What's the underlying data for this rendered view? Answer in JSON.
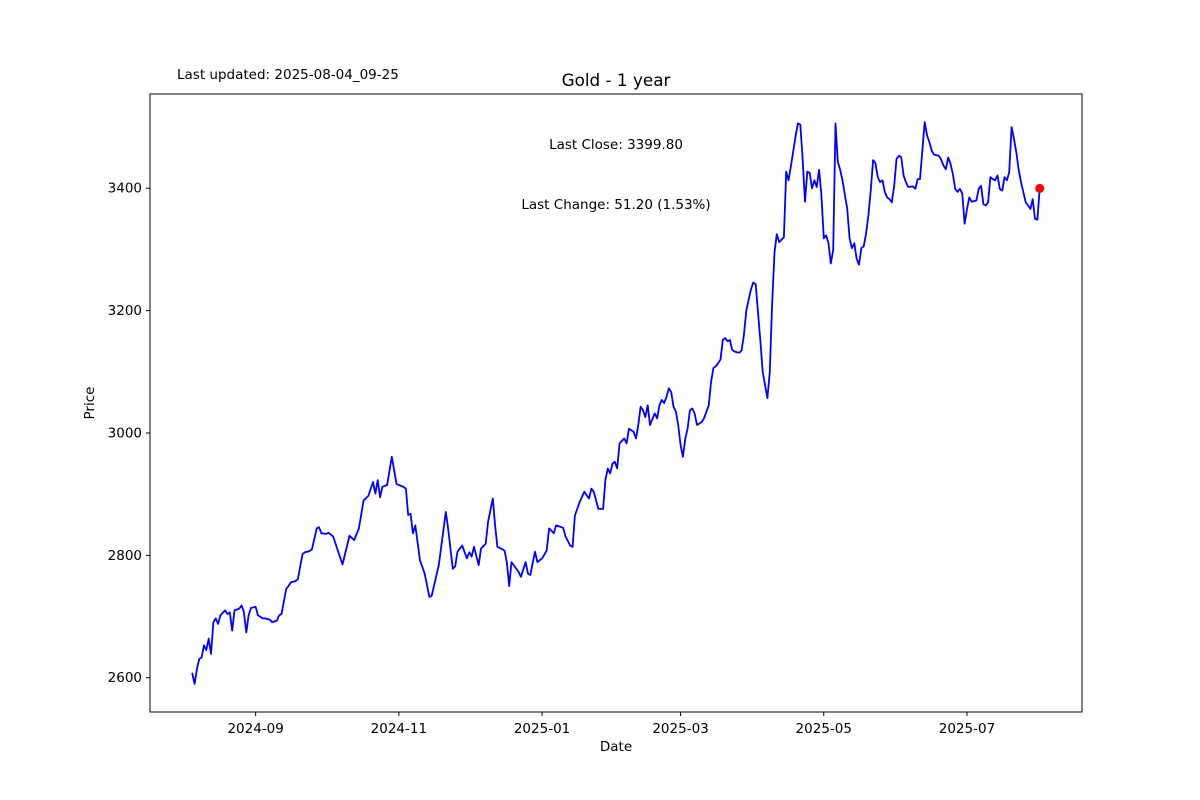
{
  "header": {
    "last_updated": "Last updated: 2025-08-04_09-25",
    "title": "Gold - 1 year",
    "annotation": [
      "Last Close: 3399.80",
      "Last Change: 51.20 (1.53%)"
    ]
  },
  "axes": {
    "xlabel": "Date",
    "ylabel": "Price"
  },
  "chart_data": {
    "type": "line",
    "title": "Gold - 1 year",
    "xlabel": "Date",
    "ylabel": "Price",
    "grid": false,
    "legend_position": "none",
    "line_color": "#0000ff",
    "last_point_marker_color": "#ff0000",
    "axis_color": "#000000",
    "background_color": "#ffffff",
    "last_close": 3399.8,
    "last_change": "51.20 (1.53%)",
    "xlim": [
      "2024-07-18",
      "2025-08-19"
    ],
    "ylim": [
      2544,
      3554
    ],
    "x_ticks": [
      {
        "date": "2024-09-01",
        "label": "2024-09"
      },
      {
        "date": "2024-11-01",
        "label": "2024-11"
      },
      {
        "date": "2025-01-01",
        "label": "2025-01"
      },
      {
        "date": "2025-03-01",
        "label": "2025-03"
      },
      {
        "date": "2025-05-01",
        "label": "2025-05"
      },
      {
        "date": "2025-07-01",
        "label": "2025-07"
      }
    ],
    "y_ticks": [
      {
        "value": 2600,
        "label": "2600"
      },
      {
        "value": 2800,
        "label": "2800"
      },
      {
        "value": 3000,
        "label": "3000"
      },
      {
        "value": 3200,
        "label": "3200"
      },
      {
        "value": 3400,
        "label": "3400"
      }
    ],
    "points": [
      [
        "2024-08-05",
        2607
      ],
      [
        "2024-08-06",
        2590
      ],
      [
        "2024-08-07",
        2615
      ],
      [
        "2024-08-08",
        2631
      ],
      [
        "2024-08-09",
        2633
      ],
      [
        "2024-08-10",
        2653
      ],
      [
        "2024-08-11",
        2645
      ],
      [
        "2024-08-12",
        2664
      ],
      [
        "2024-08-13",
        2639
      ],
      [
        "2024-08-14",
        2691
      ],
      [
        "2024-08-15",
        2697
      ],
      [
        "2024-08-16",
        2688
      ],
      [
        "2024-08-17",
        2702
      ],
      [
        "2024-08-19",
        2710
      ],
      [
        "2024-08-20",
        2704
      ],
      [
        "2024-08-21",
        2707
      ],
      [
        "2024-08-22",
        2677
      ],
      [
        "2024-08-23",
        2710
      ],
      [
        "2024-08-25",
        2713
      ],
      [
        "2024-08-26",
        2718
      ],
      [
        "2024-08-27",
        2707
      ],
      [
        "2024-08-28",
        2674
      ],
      [
        "2024-08-29",
        2702
      ],
      [
        "2024-08-30",
        2714
      ],
      [
        "2024-09-01",
        2716
      ],
      [
        "2024-09-02",
        2702
      ],
      [
        "2024-09-04",
        2697
      ],
      [
        "2024-09-05",
        2697
      ],
      [
        "2024-09-07",
        2695
      ],
      [
        "2024-09-08",
        2691
      ],
      [
        "2024-09-10",
        2693
      ],
      [
        "2024-09-11",
        2702
      ],
      [
        "2024-09-12",
        2704
      ],
      [
        "2024-09-14",
        2745
      ],
      [
        "2024-09-15",
        2750
      ],
      [
        "2024-09-16",
        2756
      ],
      [
        "2024-09-18",
        2758
      ],
      [
        "2024-09-19",
        2761
      ],
      [
        "2024-09-20",
        2782
      ],
      [
        "2024-09-21",
        2802
      ],
      [
        "2024-09-22",
        2805
      ],
      [
        "2024-09-24",
        2807
      ],
      [
        "2024-09-25",
        2810
      ],
      [
        "2024-09-27",
        2844
      ],
      [
        "2024-09-28",
        2846
      ],
      [
        "2024-09-29",
        2836
      ],
      [
        "2024-10-01",
        2835
      ],
      [
        "2024-10-02",
        2837
      ],
      [
        "2024-10-04",
        2831
      ],
      [
        "2024-10-08",
        2785
      ],
      [
        "2024-10-11",
        2832
      ],
      [
        "2024-10-13",
        2825
      ],
      [
        "2024-10-15",
        2844
      ],
      [
        "2024-10-17",
        2890
      ],
      [
        "2024-10-19",
        2897
      ],
      [
        "2024-10-21",
        2920
      ],
      [
        "2024-10-22",
        2901
      ],
      [
        "2024-10-23",
        2923
      ],
      [
        "2024-10-24",
        2895
      ],
      [
        "2024-10-25",
        2912
      ],
      [
        "2024-10-27",
        2915
      ],
      [
        "2024-10-29",
        2961
      ],
      [
        "2024-10-31",
        2917
      ],
      [
        "2024-11-01",
        2915
      ],
      [
        "2024-11-03",
        2912
      ],
      [
        "2024-11-04",
        2909
      ],
      [
        "2024-11-05",
        2866
      ],
      [
        "2024-11-06",
        2868
      ],
      [
        "2024-11-07",
        2836
      ],
      [
        "2024-11-08",
        2849
      ],
      [
        "2024-11-10",
        2792
      ],
      [
        "2024-11-12",
        2770
      ],
      [
        "2024-11-14",
        2732
      ],
      [
        "2024-11-15",
        2734
      ],
      [
        "2024-11-18",
        2784
      ],
      [
        "2024-11-21",
        2871
      ],
      [
        "2024-11-22",
        2844
      ],
      [
        "2024-11-24",
        2778
      ],
      [
        "2024-11-25",
        2782
      ],
      [
        "2024-11-26",
        2806
      ],
      [
        "2024-11-28",
        2816
      ],
      [
        "2024-11-30",
        2795
      ],
      [
        "2024-12-01",
        2805
      ],
      [
        "2024-12-02",
        2798
      ],
      [
        "2024-12-03",
        2814
      ],
      [
        "2024-12-05",
        2784
      ],
      [
        "2024-12-06",
        2811
      ],
      [
        "2024-12-08",
        2819
      ],
      [
        "2024-12-09",
        2855
      ],
      [
        "2024-12-11",
        2893
      ],
      [
        "2024-12-12",
        2849
      ],
      [
        "2024-12-13",
        2814
      ],
      [
        "2024-12-14",
        2812
      ],
      [
        "2024-12-15",
        2810
      ],
      [
        "2024-12-16",
        2808
      ],
      [
        "2024-12-17",
        2789
      ],
      [
        "2024-12-18",
        2750
      ],
      [
        "2024-12-19",
        2789
      ],
      [
        "2024-12-22",
        2773
      ],
      [
        "2024-12-23",
        2765
      ],
      [
        "2024-12-25",
        2789
      ],
      [
        "2024-12-26",
        2770
      ],
      [
        "2024-12-27",
        2768
      ],
      [
        "2024-12-29",
        2806
      ],
      [
        "2024-12-30",
        2789
      ],
      [
        "2025-01-01",
        2795
      ],
      [
        "2025-01-03",
        2808
      ],
      [
        "2025-01-04",
        2844
      ],
      [
        "2025-01-06",
        2836
      ],
      [
        "2025-01-07",
        2849
      ],
      [
        "2025-01-10",
        2845
      ],
      [
        "2025-01-11",
        2831
      ],
      [
        "2025-01-13",
        2816
      ],
      [
        "2025-01-14",
        2814
      ],
      [
        "2025-01-15",
        2865
      ],
      [
        "2025-01-17",
        2887
      ],
      [
        "2025-01-19",
        2904
      ],
      [
        "2025-01-20",
        2898
      ],
      [
        "2025-01-21",
        2893
      ],
      [
        "2025-01-22",
        2909
      ],
      [
        "2025-01-23",
        2904
      ],
      [
        "2025-01-25",
        2876
      ],
      [
        "2025-01-27",
        2876
      ],
      [
        "2025-01-28",
        2923
      ],
      [
        "2025-01-29",
        2942
      ],
      [
        "2025-01-30",
        2934
      ],
      [
        "2025-01-31",
        2950
      ],
      [
        "2025-02-01",
        2953
      ],
      [
        "2025-02-02",
        2942
      ],
      [
        "2025-02-03",
        2983
      ],
      [
        "2025-02-05",
        2991
      ],
      [
        "2025-02-06",
        2983
      ],
      [
        "2025-02-07",
        3007
      ],
      [
        "2025-02-09",
        3002
      ],
      [
        "2025-02-10",
        2991
      ],
      [
        "2025-02-11",
        3013
      ],
      [
        "2025-02-12",
        3043
      ],
      [
        "2025-02-13",
        3037
      ],
      [
        "2025-02-14",
        3026
      ],
      [
        "2025-02-15",
        3045
      ],
      [
        "2025-02-16",
        3013
      ],
      [
        "2025-02-18",
        3032
      ],
      [
        "2025-02-19",
        3024
      ],
      [
        "2025-02-20",
        3045
      ],
      [
        "2025-02-21",
        3054
      ],
      [
        "2025-02-22",
        3049
      ],
      [
        "2025-02-23",
        3059
      ],
      [
        "2025-02-24",
        3073
      ],
      [
        "2025-02-25",
        3067
      ],
      [
        "2025-02-26",
        3043
      ],
      [
        "2025-02-27",
        3035
      ],
      [
        "2025-02-28",
        3013
      ],
      [
        "2025-03-01",
        2980
      ],
      [
        "2025-03-02",
        2961
      ],
      [
        "2025-03-03",
        2991
      ],
      [
        "2025-03-04",
        3007
      ],
      [
        "2025-03-05",
        3037
      ],
      [
        "2025-03-06",
        3040
      ],
      [
        "2025-03-07",
        3032
      ],
      [
        "2025-03-08",
        3013
      ],
      [
        "2025-03-10",
        3018
      ],
      [
        "2025-03-11",
        3024
      ],
      [
        "2025-03-13",
        3045
      ],
      [
        "2025-03-14",
        3084
      ],
      [
        "2025-03-15",
        3106
      ],
      [
        "2025-03-16",
        3109
      ],
      [
        "2025-03-17",
        3114
      ],
      [
        "2025-03-18",
        3120
      ],
      [
        "2025-03-19",
        3152
      ],
      [
        "2025-03-20",
        3155
      ],
      [
        "2025-03-21",
        3150
      ],
      [
        "2025-03-22",
        3152
      ],
      [
        "2025-03-23",
        3136
      ],
      [
        "2025-03-24",
        3133
      ],
      [
        "2025-03-26",
        3131
      ],
      [
        "2025-03-27",
        3135
      ],
      [
        "2025-03-28",
        3160
      ],
      [
        "2025-03-29",
        3200
      ],
      [
        "2025-03-31",
        3235
      ],
      [
        "2025-04-01",
        3246
      ],
      [
        "2025-04-02",
        3243
      ],
      [
        "2025-04-04",
        3150
      ],
      [
        "2025-04-05",
        3100
      ],
      [
        "2025-04-07",
        3057
      ],
      [
        "2025-04-08",
        3100
      ],
      [
        "2025-04-09",
        3210
      ],
      [
        "2025-04-10",
        3295
      ],
      [
        "2025-04-11",
        3325
      ],
      [
        "2025-04-12",
        3312
      ],
      [
        "2025-04-14",
        3320
      ],
      [
        "2025-04-15",
        3427
      ],
      [
        "2025-04-16",
        3413
      ],
      [
        "2025-04-17",
        3436
      ],
      [
        "2025-04-18",
        3460
      ],
      [
        "2025-04-19",
        3485
      ],
      [
        "2025-04-20",
        3506
      ],
      [
        "2025-04-21",
        3504
      ],
      [
        "2025-04-22",
        3449
      ],
      [
        "2025-04-23",
        3378
      ],
      [
        "2025-04-24",
        3427
      ],
      [
        "2025-04-25",
        3425
      ],
      [
        "2025-04-26",
        3400
      ],
      [
        "2025-04-27",
        3413
      ],
      [
        "2025-04-28",
        3402
      ],
      [
        "2025-04-29",
        3430
      ],
      [
        "2025-04-30",
        3389
      ],
      [
        "2025-05-01",
        3318
      ],
      [
        "2025-05-02",
        3323
      ],
      [
        "2025-05-03",
        3310
      ],
      [
        "2025-05-04",
        3277
      ],
      [
        "2025-05-05",
        3299
      ],
      [
        "2025-05-06",
        3506
      ],
      [
        "2025-05-07",
        3443
      ],
      [
        "2025-05-08",
        3430
      ],
      [
        "2025-05-09",
        3413
      ],
      [
        "2025-05-10",
        3389
      ],
      [
        "2025-05-11",
        3367
      ],
      [
        "2025-05-12",
        3318
      ],
      [
        "2025-05-13",
        3302
      ],
      [
        "2025-05-14",
        3310
      ],
      [
        "2025-05-15",
        3285
      ],
      [
        "2025-05-16",
        3275
      ],
      [
        "2025-05-17",
        3302
      ],
      [
        "2025-05-18",
        3305
      ],
      [
        "2025-05-19",
        3325
      ],
      [
        "2025-05-20",
        3356
      ],
      [
        "2025-05-21",
        3395
      ],
      [
        "2025-05-22",
        3446
      ],
      [
        "2025-05-23",
        3441
      ],
      [
        "2025-05-24",
        3418
      ],
      [
        "2025-05-25",
        3410
      ],
      [
        "2025-05-26",
        3413
      ],
      [
        "2025-05-27",
        3394
      ],
      [
        "2025-05-28",
        3385
      ],
      [
        "2025-05-29",
        3382
      ],
      [
        "2025-05-30",
        3377
      ],
      [
        "2025-05-31",
        3404
      ],
      [
        "2025-06-01",
        3448
      ],
      [
        "2025-06-02",
        3453
      ],
      [
        "2025-06-03",
        3451
      ],
      [
        "2025-06-04",
        3421
      ],
      [
        "2025-06-05",
        3410
      ],
      [
        "2025-06-06",
        3402
      ],
      [
        "2025-06-08",
        3403
      ],
      [
        "2025-06-09",
        3399
      ],
      [
        "2025-06-10",
        3415
      ],
      [
        "2025-06-11",
        3415
      ],
      [
        "2025-06-13",
        3508
      ],
      [
        "2025-06-14",
        3486
      ],
      [
        "2025-06-15",
        3475
      ],
      [
        "2025-06-16",
        3461
      ],
      [
        "2025-06-17",
        3455
      ],
      [
        "2025-06-19",
        3453
      ],
      [
        "2025-06-20",
        3447
      ],
      [
        "2025-06-21",
        3437
      ],
      [
        "2025-06-22",
        3431
      ],
      [
        "2025-06-23",
        3450
      ],
      [
        "2025-06-24",
        3440
      ],
      [
        "2025-06-25",
        3423
      ],
      [
        "2025-06-26",
        3399
      ],
      [
        "2025-06-27",
        3394
      ],
      [
        "2025-06-28",
        3399
      ],
      [
        "2025-06-29",
        3391
      ],
      [
        "2025-06-30",
        3342
      ],
      [
        "2025-07-01",
        3366
      ],
      [
        "2025-07-02",
        3385
      ],
      [
        "2025-07-03",
        3378
      ],
      [
        "2025-07-05",
        3380
      ],
      [
        "2025-07-06",
        3399
      ],
      [
        "2025-07-07",
        3404
      ],
      [
        "2025-07-08",
        3374
      ],
      [
        "2025-07-09",
        3372
      ],
      [
        "2025-07-10",
        3377
      ],
      [
        "2025-07-11",
        3418
      ],
      [
        "2025-07-12",
        3415
      ],
      [
        "2025-07-13",
        3413
      ],
      [
        "2025-07-14",
        3421
      ],
      [
        "2025-07-15",
        3399
      ],
      [
        "2025-07-16",
        3396
      ],
      [
        "2025-07-17",
        3418
      ],
      [
        "2025-07-18",
        3413
      ],
      [
        "2025-07-19",
        3426
      ],
      [
        "2025-07-20",
        3500
      ],
      [
        "2025-07-21",
        3481
      ],
      [
        "2025-07-22",
        3459
      ],
      [
        "2025-07-23",
        3431
      ],
      [
        "2025-07-24",
        3410
      ],
      [
        "2025-07-25",
        3394
      ],
      [
        "2025-07-26",
        3377
      ],
      [
        "2025-07-27",
        3372
      ],
      [
        "2025-07-28",
        3366
      ],
      [
        "2025-07-29",
        3382
      ],
      [
        "2025-07-30",
        3350
      ],
      [
        "2025-07-31",
        3348.6
      ],
      [
        "2025-08-01",
        3399.8
      ]
    ]
  }
}
